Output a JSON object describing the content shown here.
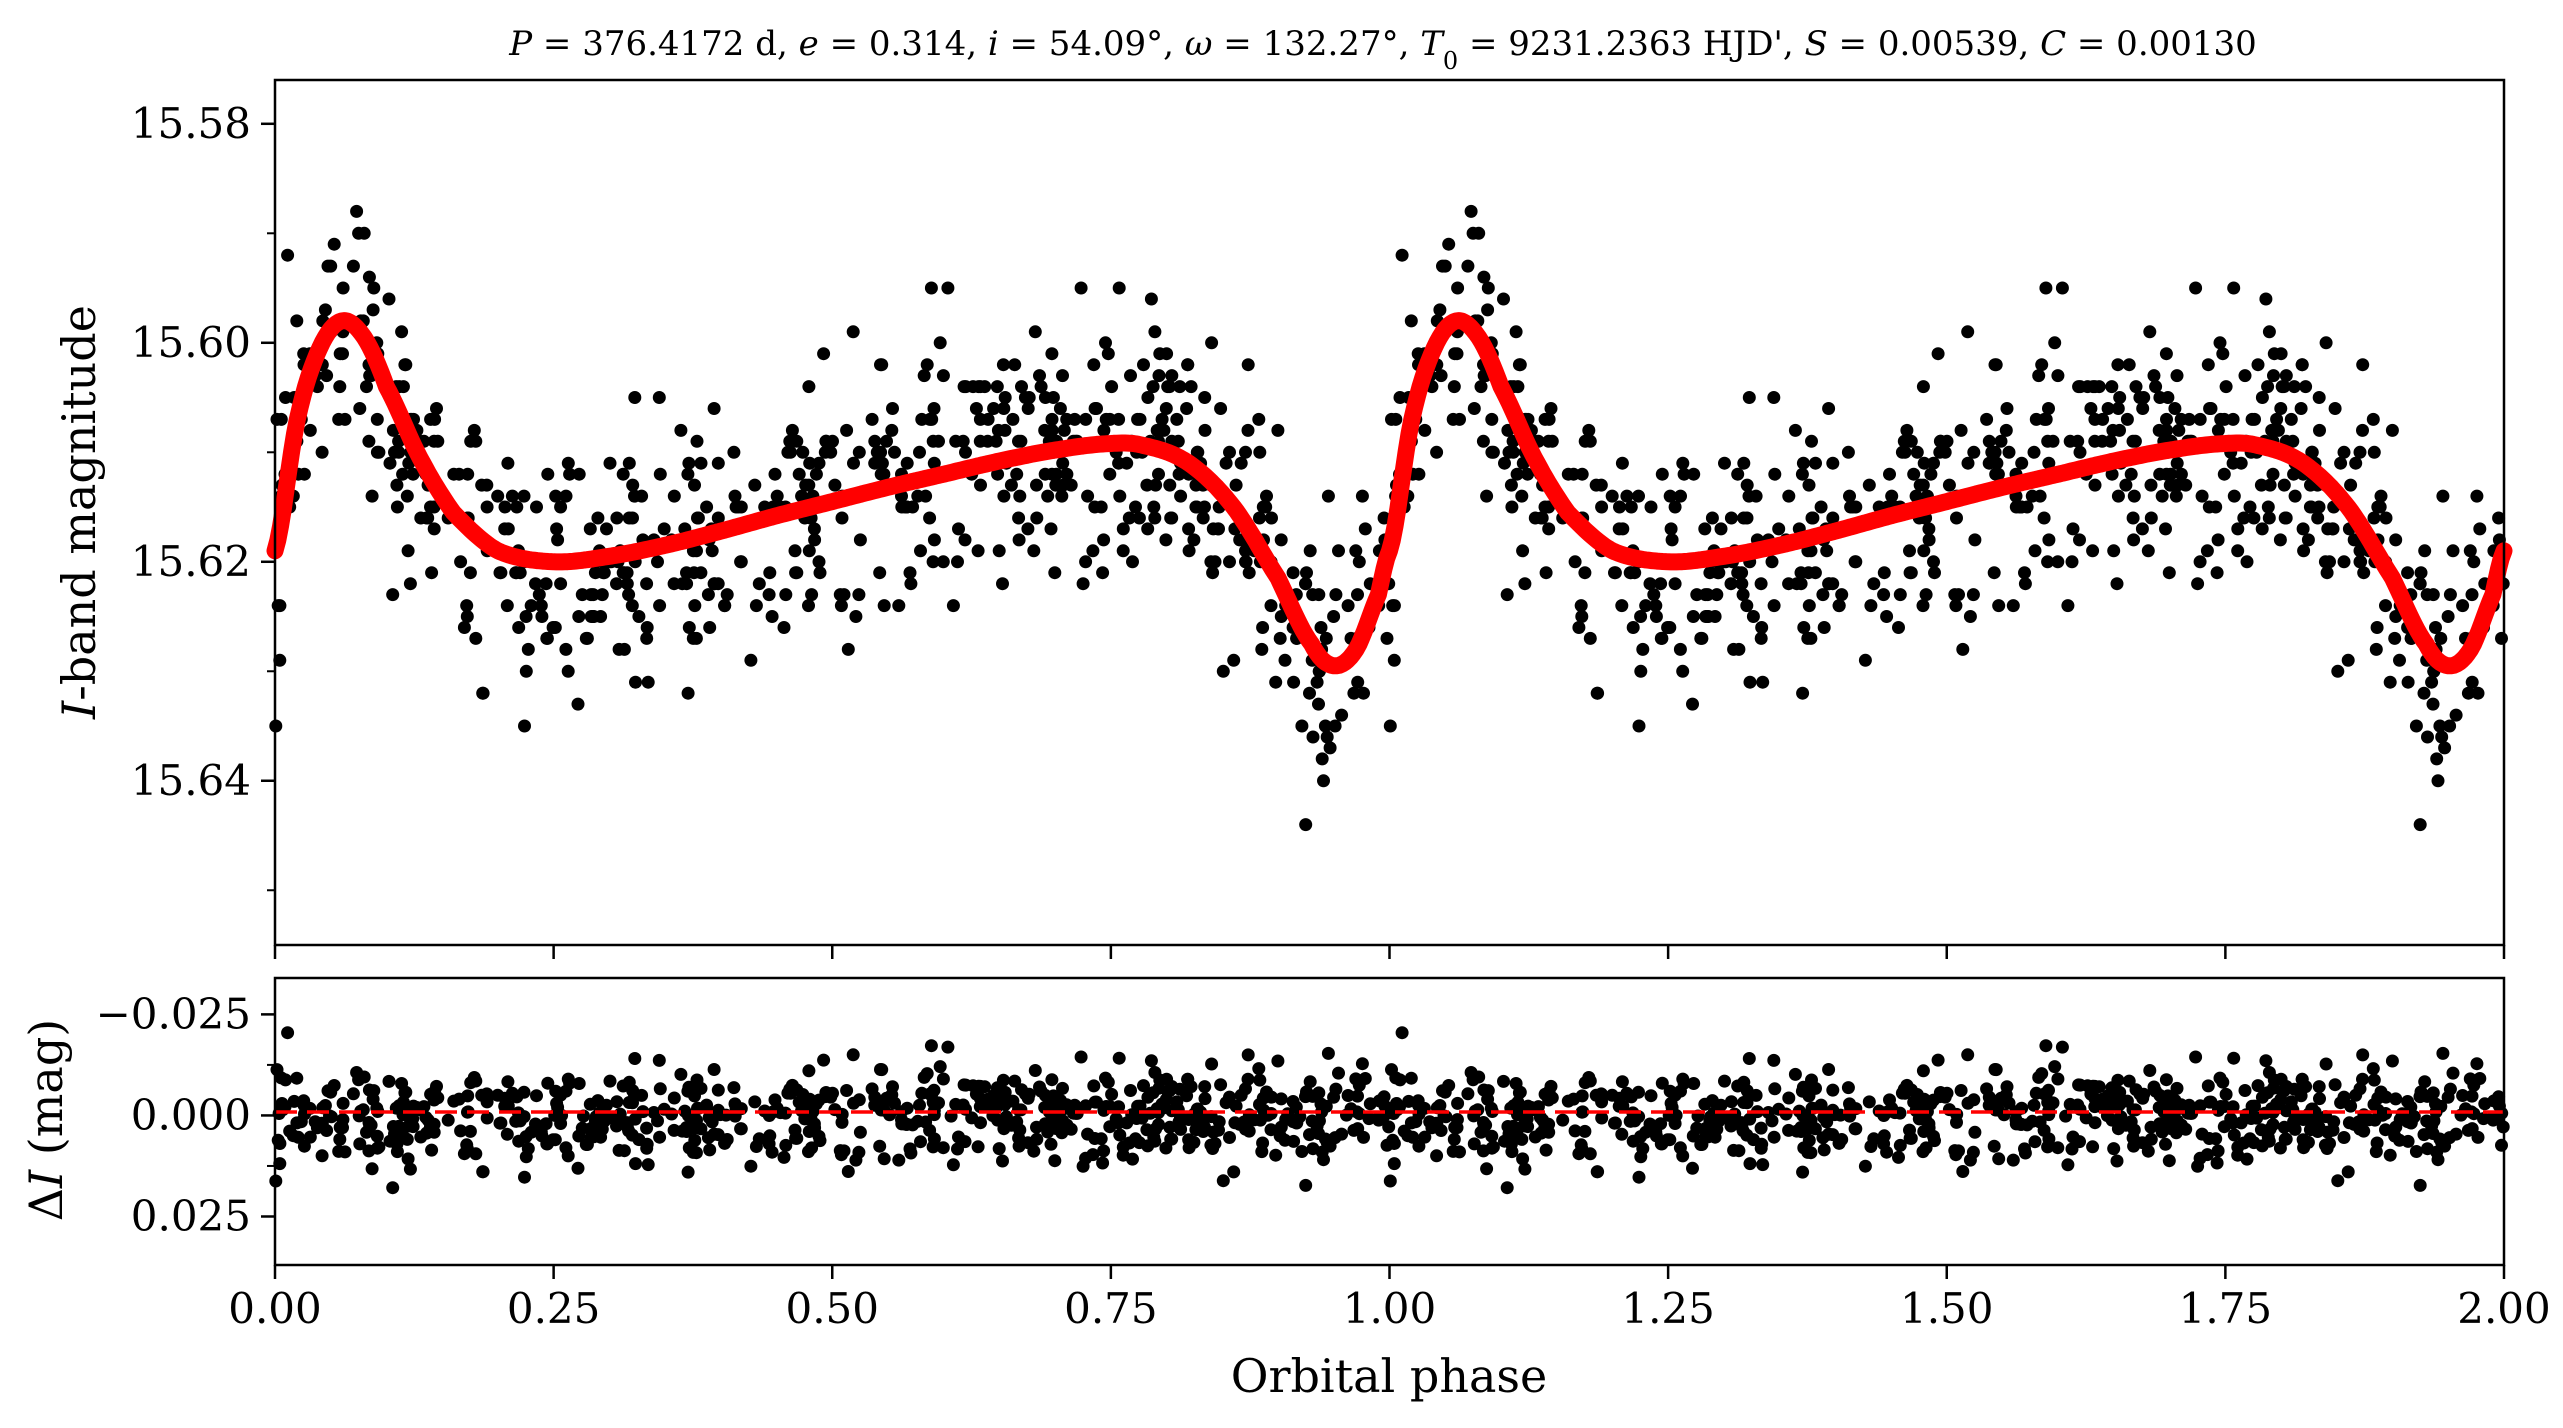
{
  "chart_data": [
    {
      "panel": "top",
      "type": "scatter",
      "title": "P = 376.4172 d, e = 0.314, i = 54.09°, ω = 132.27°, T0 = 9231.2363 HJD', S = 0.00539, C = 0.00130",
      "title_parts": {
        "P": "376.4172 d",
        "e": "0.314",
        "i": "54.09°",
        "omega": "132.27°",
        "T0": "9231.2363 HJD'",
        "S": "0.00539",
        "C": "0.00130"
      },
      "xlabel": "",
      "ylabel": "I-band magnitude",
      "ylabel_italic_part": "I",
      "ylabel_rest": "-band magnitude",
      "xlim": [
        0.0,
        2.0
      ],
      "ylim": [
        15.655,
        15.576
      ],
      "y_inverted": true,
      "yticks": [
        15.58,
        15.6,
        15.62,
        15.64
      ],
      "ytick_labels": [
        "15.58",
        "15.60",
        "15.62",
        "15.64"
      ],
      "xticks": [
        0.0,
        0.25,
        0.5,
        0.75,
        1.0,
        1.25,
        1.5,
        1.75,
        2.0
      ],
      "series": [
        {
          "name": "observations",
          "kind": "scatter",
          "color": "#000000",
          "note": "photometric points phased twice (phase 0–2); shape follows the model curve with ~0.006 mag scatter"
        },
        {
          "name": "model",
          "kind": "line",
          "color": "#ff0000",
          "x": [
            0.0,
            0.02,
            0.04,
            0.06,
            0.08,
            0.1,
            0.13,
            0.16,
            0.2,
            0.25,
            0.3,
            0.35,
            0.4,
            0.45,
            0.5,
            0.55,
            0.6,
            0.65,
            0.7,
            0.75,
            0.78,
            0.82,
            0.86,
            0.9,
            0.93,
            0.95,
            0.97,
            0.99,
            1.0
          ],
          "y": [
            15.619,
            15.607,
            15.6005,
            15.598,
            15.5995,
            15.604,
            15.6105,
            15.6155,
            15.619,
            15.62,
            15.6195,
            15.6185,
            15.6172,
            15.6158,
            15.6145,
            15.6132,
            15.612,
            15.6108,
            15.6098,
            15.6092,
            15.6094,
            15.611,
            15.615,
            15.6215,
            15.6275,
            15.6295,
            15.628,
            15.623,
            15.619
          ]
        }
      ]
    },
    {
      "panel": "bottom",
      "type": "scatter",
      "title": "",
      "xlabel": "Orbital phase",
      "ylabel": "ΔI (mag)",
      "ylabel_delta": "Δ",
      "ylabel_italic_part": "I",
      "ylabel_rest": " (mag)",
      "xlim": [
        0.0,
        2.0
      ],
      "ylim": [
        0.037,
        -0.034
      ],
      "y_inverted": true,
      "yticks": [
        -0.025,
        0.0,
        0.025
      ],
      "ytick_labels": [
        "−0.025",
        "0.000",
        "0.025"
      ],
      "xticks": [
        0.0,
        0.25,
        0.5,
        0.75,
        1.0,
        1.25,
        1.5,
        1.75,
        2.0
      ],
      "xtick_labels": [
        "0.00",
        "0.25",
        "0.50",
        "0.75",
        "1.00",
        "1.25",
        "1.50",
        "1.75",
        "2.00"
      ],
      "series": [
        {
          "name": "residuals",
          "kind": "scatter",
          "color": "#000000",
          "note": "residuals scattered around zero with ~0.006 mag spread"
        },
        {
          "name": "zero line",
          "kind": "hline",
          "y": 0.0,
          "color": "#ff0000",
          "style": "dashed"
        }
      ]
    }
  ],
  "scatter_config": {
    "points_per_phase_cycle": 700,
    "noise_sigma": 0.0058,
    "seed": 12345
  },
  "colors": {
    "points": "#000000",
    "model": "#ff0000",
    "axes": "#000000",
    "background": "#ffffff"
  }
}
